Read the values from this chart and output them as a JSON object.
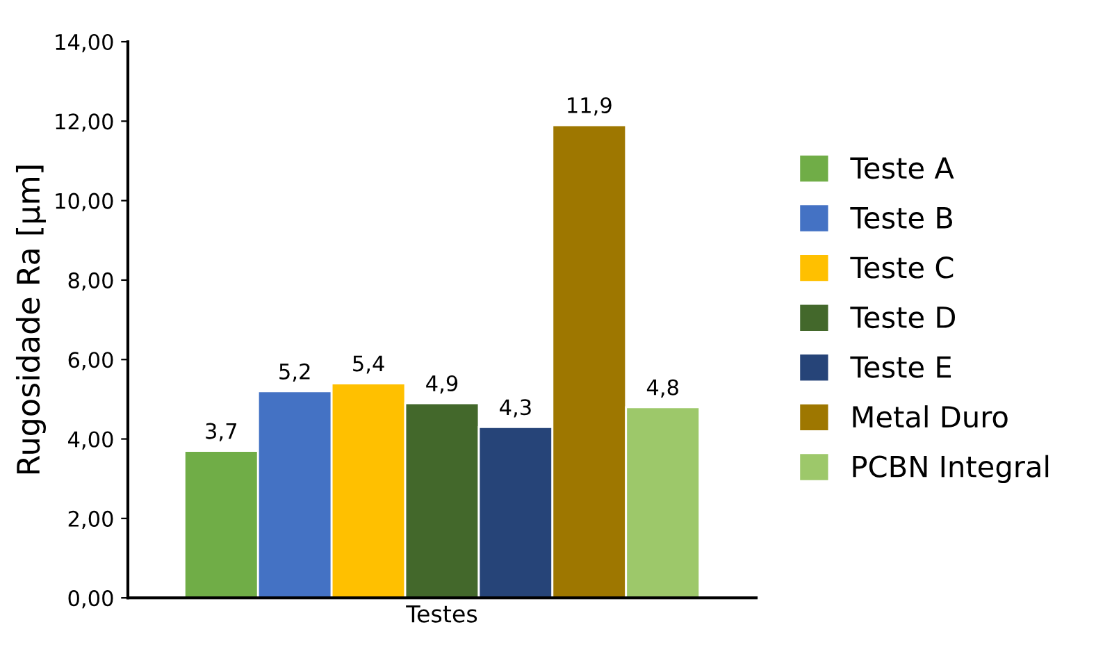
{
  "chart_data": {
    "type": "bar",
    "ylabel": "Rugosidade Ra [µm]",
    "categories": [
      "Testes"
    ],
    "series": [
      {
        "name": "Teste A",
        "color": "#70ad47",
        "values": [
          3.7
        ],
        "value_labels": [
          "3,7"
        ]
      },
      {
        "name": "Teste B",
        "color": "#4472c4",
        "values": [
          5.2
        ],
        "value_labels": [
          "5,2"
        ]
      },
      {
        "name": "Teste C",
        "color": "#ffc000",
        "values": [
          5.4
        ],
        "value_labels": [
          "5,4"
        ]
      },
      {
        "name": "Teste D",
        "color": "#43682b",
        "values": [
          4.9
        ],
        "value_labels": [
          "4,9"
        ]
      },
      {
        "name": "Teste E",
        "color": "#264478",
        "values": [
          4.3
        ],
        "value_labels": [
          "4,3"
        ]
      },
      {
        "name": "Metal Duro",
        "color": "#9e7700",
        "values": [
          11.9
        ],
        "value_labels": [
          "11,9"
        ]
      },
      {
        "name": "PCBN Integral",
        "color": "#9dc86a",
        "values": [
          4.8
        ],
        "value_labels": [
          "4,8"
        ]
      }
    ],
    "ylim": [
      0,
      14
    ],
    "yticks": [
      {
        "value": 0,
        "label": "0,00"
      },
      {
        "value": 2,
        "label": "2,00"
      },
      {
        "value": 4,
        "label": "4,00"
      },
      {
        "value": 6,
        "label": "6,00"
      },
      {
        "value": 8,
        "label": "8,00"
      },
      {
        "value": 10,
        "label": "10,00"
      },
      {
        "value": 12,
        "label": "12,00"
      },
      {
        "value": 14,
        "label": "14,00"
      }
    ],
    "legend": "right",
    "grid": false
  }
}
